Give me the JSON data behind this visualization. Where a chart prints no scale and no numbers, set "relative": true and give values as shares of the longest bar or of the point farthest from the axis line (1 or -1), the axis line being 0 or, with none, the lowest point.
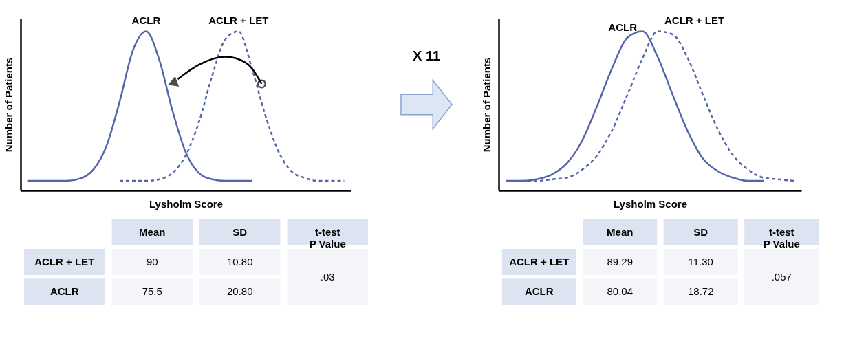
{
  "chart_data": [
    {
      "type": "line",
      "relative": true,
      "xlabel": "Lysholm Score",
      "ylabel": "Number of Patients",
      "categories": [
        null,
        null,
        null,
        null,
        null,
        null,
        null,
        null,
        null,
        null,
        null,
        null,
        null,
        null,
        null,
        null,
        null,
        null,
        null,
        null,
        null,
        null,
        null,
        null,
        null
      ],
      "series": [
        {
          "name": "ACLR",
          "color": "#5466a8",
          "line_style": "solid",
          "values": [
            0.06,
            0.06,
            0.06,
            0.06,
            0.075,
            0.13,
            0.28,
            0.56,
            0.88,
            1.0,
            0.82,
            0.5,
            0.24,
            0.11,
            0.07,
            0.06,
            0.06,
            0.06,
            null,
            null,
            null,
            null,
            null,
            null,
            null
          ]
        },
        {
          "name": "ACLR + LET",
          "color": "#5466a8",
          "line_style": "dashed",
          "values": [
            null,
            null,
            null,
            null,
            null,
            null,
            null,
            0.06,
            0.06,
            0.06,
            0.07,
            0.11,
            0.22,
            0.43,
            0.72,
            0.95,
            1.0,
            0.77,
            0.48,
            0.25,
            0.12,
            0.08,
            0.06,
            0.06,
            0.06
          ]
        }
      ]
    },
    {
      "type": "other",
      "categories": [
        "Mean",
        "SD",
        "t-test\nP Value"
      ],
      "y_categories": [
        "ACLR + LET",
        "ACLR"
      ],
      "cell_labels": [
        [
          "90",
          "10.80",
          ".03"
        ],
        [
          "75.5",
          "20.80",
          null
        ]
      ]
    },
    {
      "type": "other",
      "annotations": [
        "X 11"
      ]
    },
    {
      "type": "line",
      "relative": true,
      "xlabel": "Lysholm Score",
      "ylabel": "Number of Patients",
      "categories": [
        null,
        null,
        null,
        null,
        null,
        null,
        null,
        null,
        null,
        null,
        null,
        null,
        null,
        null,
        null,
        null,
        null,
        null,
        null,
        null
      ],
      "series": [
        {
          "name": "ACLR",
          "color": "#5466a8",
          "line_style": "solid",
          "values": [
            0.06,
            0.06,
            0.07,
            0.1,
            0.17,
            0.31,
            0.53,
            0.77,
            0.96,
            1.0,
            0.84,
            0.6,
            0.37,
            0.2,
            0.12,
            0.08,
            0.06,
            0.06,
            null,
            null
          ]
        },
        {
          "name": "ACLR + LET",
          "color": "#5466a8",
          "line_style": "dashed",
          "values": [
            null,
            0.06,
            0.06,
            0.07,
            0.08,
            0.13,
            0.22,
            0.38,
            0.6,
            0.83,
            1.0,
            0.98,
            0.83,
            0.6,
            0.38,
            0.22,
            0.13,
            0.08,
            0.07,
            0.06
          ]
        }
      ]
    },
    {
      "type": "other",
      "categories": [
        "Mean",
        "SD",
        "t-test\nP Value"
      ],
      "y_categories": [
        "ACLR + LET",
        "ACLR"
      ],
      "cell_labels": [
        [
          "89.29",
          "11.30",
          ".057"
        ],
        [
          "80.04",
          "18.72",
          null
        ]
      ]
    }
  ]
}
